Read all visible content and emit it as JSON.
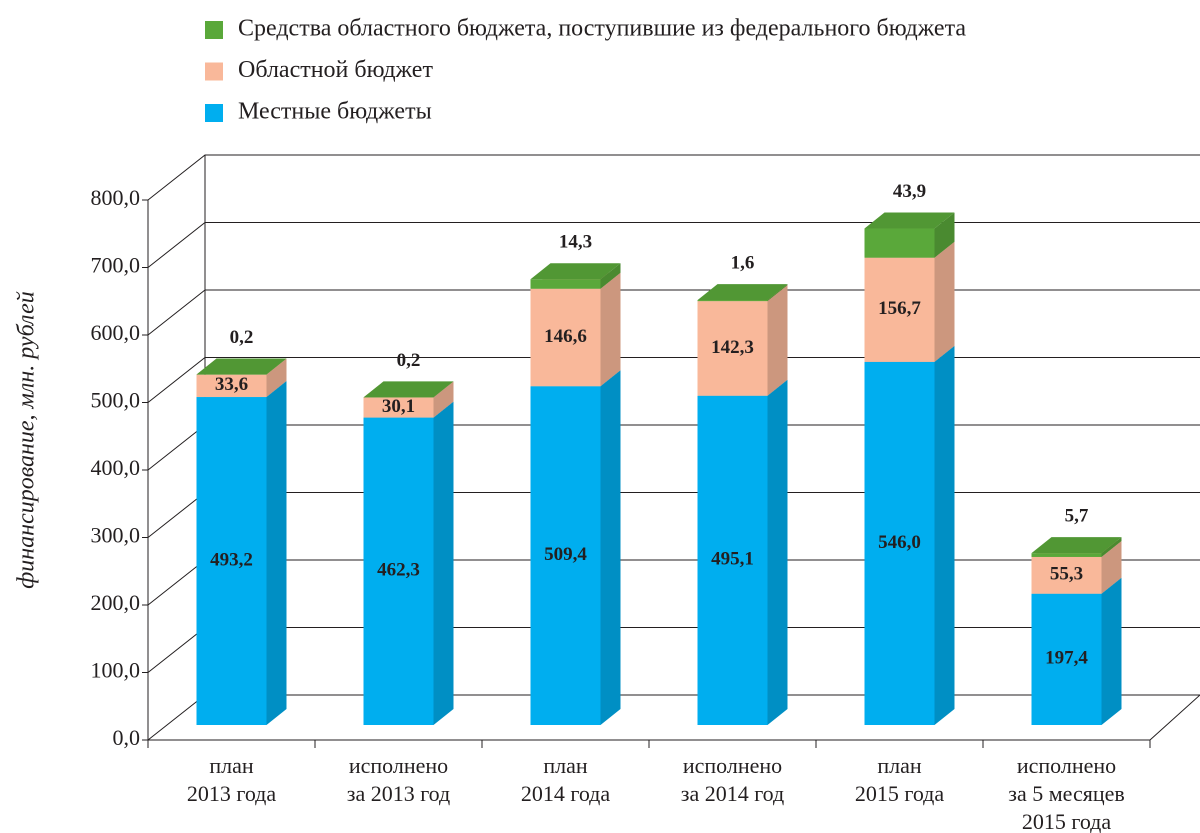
{
  "chart_data": {
    "type": "bar3d_stacked",
    "y_label": "финансирование, млн. рублей",
    "categories": [
      [
        "план",
        "2013 года"
      ],
      [
        "исполнено",
        "за 2013 год"
      ],
      [
        "план",
        "2014 года"
      ],
      [
        "исполнено",
        "за 2014 год"
      ],
      [
        "план",
        "2015 года"
      ],
      [
        "исполнено",
        "за 5 месяцев",
        "2015 года"
      ]
    ],
    "series": [
      {
        "name": "Местные бюджеты",
        "color": "#00aeef",
        "values": [
          493.2,
          462.3,
          509.4,
          495.1,
          546.0,
          197.4
        ],
        "value_labels": [
          "493,2",
          "462,3",
          "509,4",
          "495,1",
          "546,0",
          "197,4"
        ]
      },
      {
        "name": "Областной бюджет",
        "color": "#f9b89a",
        "values": [
          33.6,
          30.1,
          146.6,
          142.3,
          156.7,
          55.3
        ],
        "value_labels": [
          "33,6",
          "30,1",
          "146,6",
          "142,3",
          "156,7",
          "55,3"
        ]
      },
      {
        "name": "Средства областного бюджета, поступившие из федерального бюджета",
        "color": "#5aa83a",
        "values": [
          0.2,
          0.2,
          14.3,
          1.6,
          43.9,
          5.7
        ],
        "value_labels": [
          "0,2",
          "0,2",
          "14,3",
          "1,6",
          "43,9",
          "5,7"
        ]
      }
    ],
    "ylim": [
      0,
      800
    ],
    "yticks": [
      {
        "value": 0,
        "label": "0,0"
      },
      {
        "value": 100,
        "label": "100,0"
      },
      {
        "value": 200,
        "label": "200,0"
      },
      {
        "value": 300,
        "label": "300,0"
      },
      {
        "value": 400,
        "label": "400,0"
      },
      {
        "value": 500,
        "label": "500,0"
      },
      {
        "value": 600,
        "label": "600,0"
      },
      {
        "value": 700,
        "label": "700,0"
      },
      {
        "value": 800,
        "label": "800,0"
      }
    ],
    "grid": true
  }
}
